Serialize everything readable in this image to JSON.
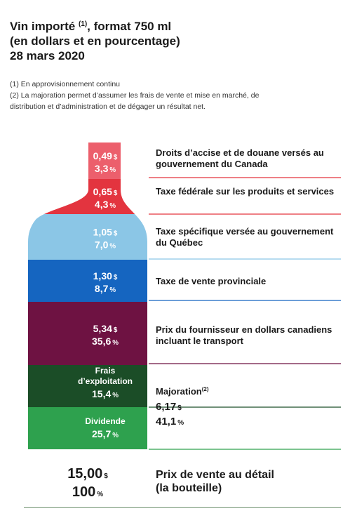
{
  "title": {
    "line1": "Vin importé",
    "ref": "(1)",
    "line1_end": ", format 750 ml",
    "line2": "(en dollars et en pourcentage)",
    "line3": "28 mars 2020"
  },
  "notes": {
    "n1": "(1) En approvisionnement continu",
    "n2a": "(2) La majoration permet d’assumer les frais de vente et mise en marché, de",
    "n2b": "distribution et d’administration et de dégager un résultat net."
  },
  "chart_data": {
    "type": "bar",
    "currency_unit": "$",
    "percent_unit": "%",
    "segments": [
      {
        "amount": "0,49",
        "percent": "3,3",
        "label": "Droits d’accise et de douane versés au gouvernement du Canada",
        "color": "#ec5f6c",
        "text_color": "#ffffff"
      },
      {
        "amount": "0,65",
        "percent": "4,3",
        "label": "Taxe fédérale sur les produits et services",
        "color": "#e3343f",
        "text_color": "#ffffff"
      },
      {
        "amount": "1,05",
        "percent": "7,0",
        "label": "Taxe spécifique versée au gouvernement du Québec",
        "color": "#8bc6e6",
        "text_color": "#ffffff"
      },
      {
        "amount": "1,30",
        "percent": "8,7",
        "label": "Taxe de vente provinciale",
        "color": "#1565c0",
        "text_color": "#ffffff"
      },
      {
        "amount": "5,34",
        "percent": "35,6",
        "label": "Prix du fournisseur en dollars canadiens incluant le transport",
        "color": "#6e1242",
        "text_color": "#ffffff"
      },
      {
        "name": "Frais d’exploitation",
        "percent": "15,4",
        "color": "#1b4d27",
        "text_color": "#ffffff"
      },
      {
        "name": "Dividende",
        "percent": "25,7",
        "color": "#2ea14e",
        "text_color": "#ffffff"
      }
    ],
    "majoration": {
      "label": "Majoration",
      "ref": "(2)",
      "amount": "6,17",
      "percent": "41,1"
    },
    "total": {
      "amount": "15,00",
      "percent": "100",
      "label_line1": "Prix de vente au détail",
      "label_line2": "(la bouteille)"
    },
    "rule_colors": [
      "#e3343f",
      "#e3343f",
      "#8bc6e6",
      "#1565c0",
      "#6e1242",
      "#1b4d27",
      "#2ea14e"
    ]
  }
}
